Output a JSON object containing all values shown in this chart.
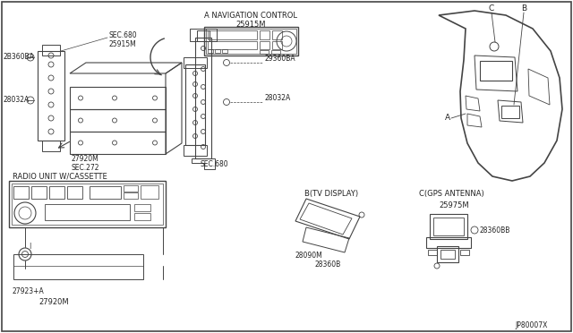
{
  "background_color": "#ffffff",
  "line_color": "#444444",
  "text_color": "#222222",
  "diagram_number": "JP80007X",
  "figsize": [
    6.4,
    3.72
  ],
  "dpi": 100,
  "labels": {
    "nav_title": "A NAVIGATION CONTROL",
    "nav_part": "25915M",
    "radio_title": "RADIO UNIT W/CASSETTE",
    "tv_title": "B(TV DISPLAY)",
    "gps_title": "C(GPS ANTENNA)",
    "gps_part": "25975M",
    "p_2b360ba": "2B360BA",
    "p_28032a": "28032A",
    "p_27920m": "27920M",
    "p_sec272": "SEC.272",
    "p_sec680_top": "SEC.680",
    "p_25915m": "25915M",
    "p_29360ba": "29360BA",
    "p_28032a2": "28032A",
    "p_sec680_bot": "SEC.680",
    "p_28090m": "28090M",
    "p_28360b": "28360B",
    "p_28360bb": "28360BB",
    "p_27923a": "27923+A",
    "p_27920m2": "27920M",
    "la": "A",
    "lb": "B",
    "lc": "C"
  }
}
